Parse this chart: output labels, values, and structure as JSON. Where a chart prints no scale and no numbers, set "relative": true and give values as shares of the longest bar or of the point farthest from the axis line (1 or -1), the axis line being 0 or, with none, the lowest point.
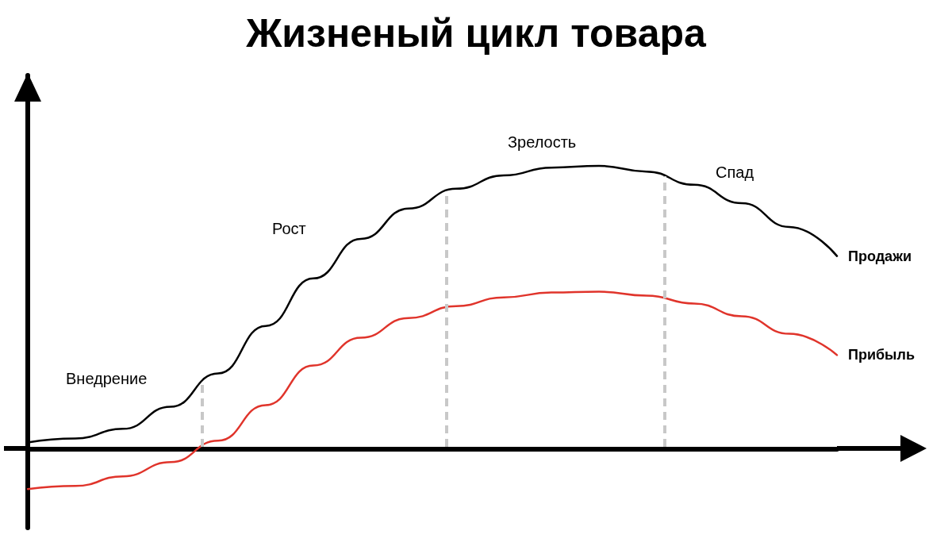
{
  "chart_data": {
    "type": "line",
    "title": "Жизненый цикл товара",
    "relative": true,
    "marker": "none",
    "line_style": "solid",
    "categories": [
      null,
      null,
      null,
      null,
      null,
      null,
      null,
      null,
      null,
      null,
      null,
      null,
      null,
      null,
      null,
      null,
      null,
      null
    ],
    "series": [
      {
        "name": "Продажи",
        "color": "#000000",
        "values": [
          0.022,
          0.036,
          0.07,
          0.148,
          0.266,
          0.434,
          0.602,
          0.742,
          0.849,
          0.919,
          0.966,
          0.994,
          1,
          0.98,
          0.933,
          0.868,
          0.784,
          0.681
        ]
      },
      {
        "name": "Прибыль",
        "color": "#e0342b",
        "values": [
          -0.143,
          -0.132,
          -0.098,
          -0.048,
          0.028,
          0.154,
          0.294,
          0.392,
          0.462,
          0.504,
          0.535,
          0.552,
          0.555,
          0.541,
          0.513,
          0.468,
          0.406,
          0.331
        ]
      }
    ],
    "annotations": [
      "Внедрение",
      "Рост",
      "Зрелость",
      "Спад"
    ]
  }
}
